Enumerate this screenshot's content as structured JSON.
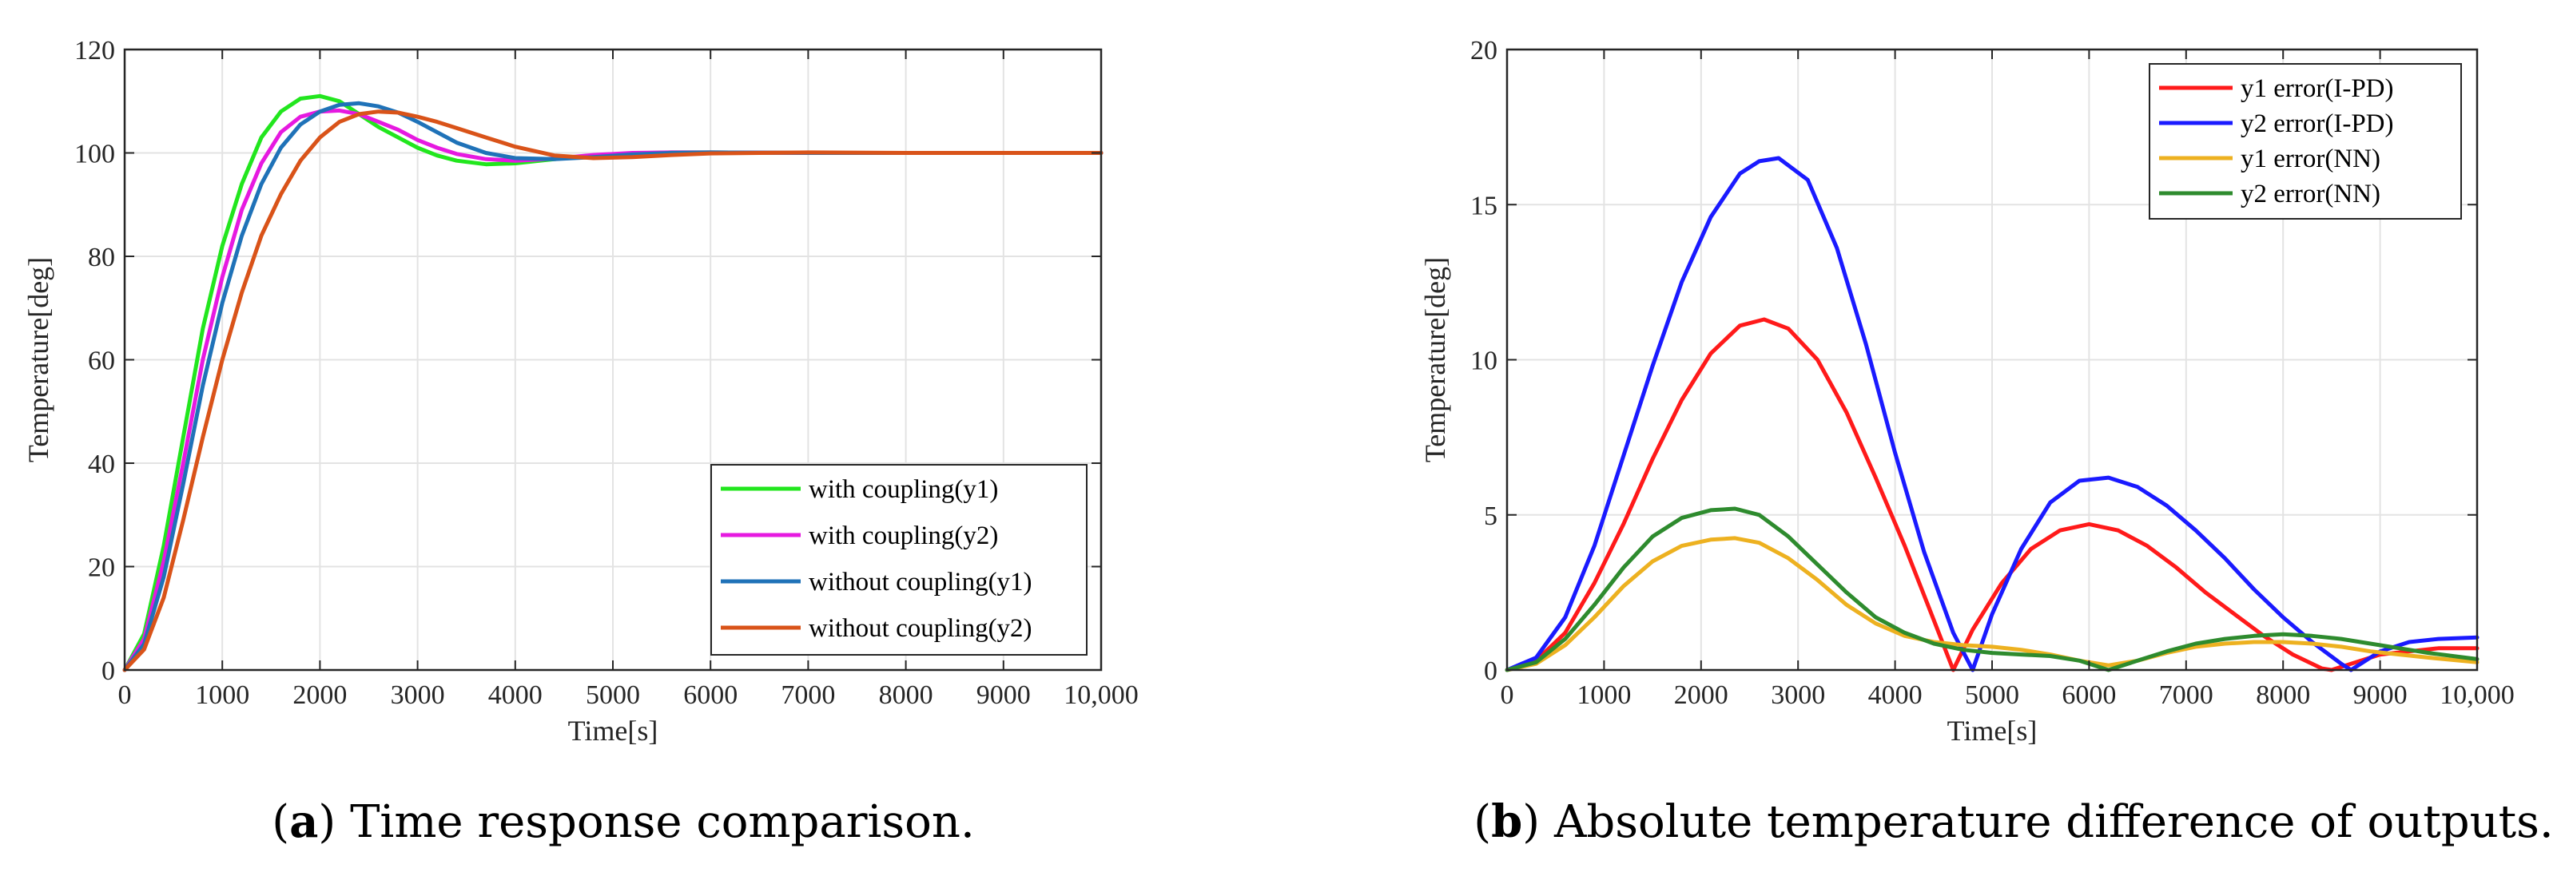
{
  "chart_data": [
    {
      "type": "line",
      "caption_letter": "a",
      "caption_text": "Time response comparison.",
      "xlabel": "Time[s]",
      "ylabel": "Temperature[deg]",
      "xlim": [
        0,
        10000
      ],
      "ylim": [
        0,
        120
      ],
      "xticks": [
        0,
        1000,
        2000,
        3000,
        4000,
        5000,
        6000,
        7000,
        8000,
        9000,
        10000
      ],
      "xtick_labels": [
        "0",
        "1000",
        "2000",
        "3000",
        "4000",
        "5000",
        "6000",
        "7000",
        "8000",
        "9000",
        "10,000"
      ],
      "yticks": [
        0,
        20,
        40,
        60,
        80,
        100,
        120
      ],
      "ytick_labels": [
        "0",
        "20",
        "40",
        "60",
        "80",
        "100",
        "120"
      ],
      "grid": true,
      "legend_position": "bottom-right",
      "series": [
        {
          "name": "with coupling(y1)",
          "color": "#22e61e",
          "x": [
            0,
            200,
            400,
            600,
            800,
            1000,
            1200,
            1400,
            1600,
            1800,
            2000,
            2200,
            2400,
            2600,
            2800,
            3000,
            3200,
            3400,
            3700,
            4000,
            4400,
            4800,
            5200,
            5600,
            6000,
            7000,
            8000,
            9000,
            10000
          ],
          "y": [
            0,
            7,
            24,
            45,
            66,
            82,
            94,
            103,
            108,
            110.5,
            111,
            110,
            107.5,
            105,
            103,
            101,
            99.5,
            98.5,
            97.8,
            98,
            98.8,
            99.5,
            99.9,
            100.1,
            100.1,
            100,
            100,
            100,
            100
          ]
        },
        {
          "name": "with coupling(y2)",
          "color": "#e619e0",
          "x": [
            0,
            200,
            400,
            600,
            800,
            1000,
            1200,
            1400,
            1600,
            1800,
            2000,
            2200,
            2400,
            2600,
            2800,
            3000,
            3200,
            3400,
            3700,
            4000,
            4400,
            4800,
            5200,
            5600,
            6000,
            7000,
            8000,
            9000,
            10000
          ],
          "y": [
            0,
            6,
            21,
            40,
            60,
            76,
            89,
            98,
            104,
            107,
            108,
            108.2,
            107.5,
            106,
            104.5,
            102.5,
            101,
            99.8,
            98.8,
            98.5,
            98.9,
            99.6,
            100,
            100.1,
            100.1,
            100,
            100,
            100,
            100
          ]
        },
        {
          "name": "without coupling(y1)",
          "color": "#1f72b8",
          "x": [
            0,
            200,
            400,
            600,
            800,
            1000,
            1200,
            1400,
            1600,
            1800,
            2000,
            2200,
            2400,
            2600,
            2800,
            3000,
            3200,
            3400,
            3700,
            4000,
            4400,
            4800,
            5200,
            5600,
            6000,
            7000,
            8000,
            9000,
            10000
          ],
          "y": [
            0,
            5,
            18,
            36,
            55,
            71,
            84,
            94,
            101,
            105.5,
            108,
            109.3,
            109.6,
            109,
            107.8,
            106,
            104,
            102,
            100,
            99,
            98.8,
            99.2,
            99.7,
            100,
            100.1,
            100,
            100,
            100,
            100
          ]
        },
        {
          "name": "without coupling(y2)",
          "color": "#d95319",
          "x": [
            0,
            200,
            400,
            600,
            800,
            1000,
            1200,
            1400,
            1600,
            1800,
            2000,
            2200,
            2400,
            2600,
            2800,
            3000,
            3200,
            3400,
            3700,
            4000,
            4400,
            4800,
            5200,
            5600,
            6000,
            7000,
            8000,
            9000,
            10000
          ],
          "y": [
            0,
            4,
            14,
            29,
            45,
            60,
            73,
            84,
            92,
            98.5,
            103,
            106,
            107.5,
            108,
            107.8,
            107,
            106,
            104.8,
            103,
            101.2,
            99.5,
            99,
            99.2,
            99.6,
            99.9,
            100.1,
            100,
            100,
            100
          ]
        }
      ]
    },
    {
      "type": "line",
      "caption_letter": "b",
      "caption_text": "Absolute temperature difference of outputs.",
      "xlabel": "Time[s]",
      "ylabel": "Temperature[deg]",
      "xlim": [
        0,
        10000
      ],
      "ylim": [
        0,
        20
      ],
      "xticks": [
        0,
        1000,
        2000,
        3000,
        4000,
        5000,
        6000,
        7000,
        8000,
        9000,
        10000
      ],
      "xtick_labels": [
        "0",
        "1000",
        "2000",
        "3000",
        "4000",
        "5000",
        "6000",
        "7000",
        "8000",
        "9000",
        "10,000"
      ],
      "yticks": [
        0,
        5,
        10,
        15,
        20
      ],
      "ytick_labels": [
        "0",
        "5",
        "10",
        "15",
        "20"
      ],
      "grid": true,
      "legend_position": "top-right",
      "series": [
        {
          "name": "y1 error(I-PD)",
          "color": "#ff1a1a",
          "x": [
            0,
            300,
            600,
            900,
            1200,
            1500,
            1800,
            2100,
            2400,
            2650,
            2900,
            3200,
            3500,
            3800,
            4100,
            4400,
            4600,
            4800,
            5100,
            5400,
            5700,
            6000,
            6300,
            6600,
            6900,
            7200,
            7500,
            7800,
            8100,
            8400,
            8500,
            8700,
            9000,
            9300,
            9600,
            10000
          ],
          "y": [
            0,
            0.3,
            1.2,
            2.8,
            4.7,
            6.8,
            8.7,
            10.2,
            11.1,
            11.3,
            11.0,
            10.0,
            8.3,
            6.2,
            4.0,
            1.6,
            0.0,
            1.3,
            2.8,
            3.9,
            4.5,
            4.7,
            4.5,
            4.0,
            3.3,
            2.5,
            1.8,
            1.1,
            0.5,
            0.05,
            0.0,
            0.2,
            0.5,
            0.6,
            0.7,
            0.7
          ]
        },
        {
          "name": "y2 error(I-PD)",
          "color": "#1a1aff",
          "x": [
            0,
            300,
            600,
            900,
            1200,
            1500,
            1800,
            2100,
            2400,
            2600,
            2800,
            3100,
            3400,
            3700,
            4000,
            4300,
            4600,
            4800,
            5000,
            5300,
            5600,
            5900,
            6200,
            6500,
            6800,
            7100,
            7400,
            7700,
            8000,
            8300,
            8600,
            8700,
            9000,
            9300,
            9600,
            10000
          ],
          "y": [
            0,
            0.4,
            1.7,
            4.0,
            6.9,
            9.8,
            12.5,
            14.6,
            16.0,
            16.4,
            16.5,
            15.8,
            13.6,
            10.5,
            7.0,
            3.8,
            1.2,
            0.0,
            1.8,
            3.9,
            5.4,
            6.1,
            6.2,
            5.9,
            5.3,
            4.5,
            3.6,
            2.6,
            1.7,
            0.9,
            0.2,
            0.0,
            0.6,
            0.9,
            1.0,
            1.05
          ]
        },
        {
          "name": "y1 error(NN)",
          "color": "#edb120",
          "x": [
            0,
            300,
            600,
            900,
            1200,
            1500,
            1800,
            2100,
            2350,
            2600,
            2900,
            3200,
            3500,
            3800,
            4100,
            4400,
            4700,
            5000,
            5300,
            5600,
            5900,
            6200,
            6500,
            6800,
            7100,
            7400,
            7700,
            8000,
            8300,
            8600,
            8900,
            9200,
            9500,
            10000
          ],
          "y": [
            0,
            0.2,
            0.8,
            1.7,
            2.7,
            3.5,
            4.0,
            4.2,
            4.25,
            4.1,
            3.6,
            2.9,
            2.1,
            1.5,
            1.1,
            0.9,
            0.8,
            0.75,
            0.65,
            0.5,
            0.3,
            0.15,
            0.3,
            0.55,
            0.75,
            0.85,
            0.9,
            0.9,
            0.85,
            0.75,
            0.6,
            0.5,
            0.4,
            0.25
          ]
        },
        {
          "name": "y2 error(NN)",
          "color": "#2e8b2e",
          "x": [
            0,
            300,
            600,
            900,
            1200,
            1500,
            1800,
            2100,
            2350,
            2600,
            2900,
            3200,
            3500,
            3800,
            4100,
            4400,
            4700,
            5000,
            5300,
            5600,
            5900,
            6200,
            6500,
            6800,
            7100,
            7400,
            7700,
            8000,
            8300,
            8600,
            8900,
            9200,
            9500,
            10000
          ],
          "y": [
            0,
            0.25,
            1.0,
            2.1,
            3.3,
            4.3,
            4.9,
            5.15,
            5.2,
            5.0,
            4.3,
            3.4,
            2.5,
            1.7,
            1.2,
            0.85,
            0.65,
            0.55,
            0.5,
            0.45,
            0.3,
            0.0,
            0.3,
            0.6,
            0.85,
            1.0,
            1.1,
            1.15,
            1.1,
            1.0,
            0.85,
            0.7,
            0.55,
            0.35
          ]
        }
      ]
    }
  ]
}
